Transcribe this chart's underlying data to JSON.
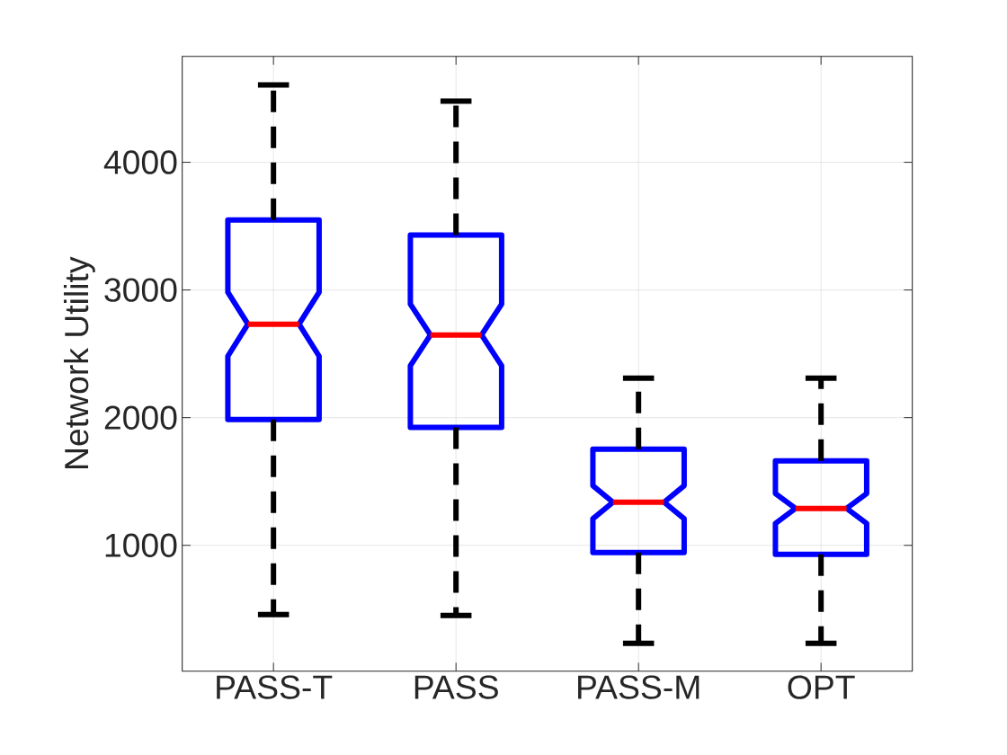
{
  "chart_data": {
    "type": "box",
    "ylabel": "Network Utility",
    "categories": [
      "PASS-T",
      "PASS",
      "PASS-M",
      "OPT"
    ],
    "boxes": [
      {
        "low": 458,
        "q1": 1986,
        "median": 2732,
        "q3": 3549,
        "high": 4606
      },
      {
        "low": 451,
        "q1": 1923,
        "median": 2648,
        "q3": 3430,
        "high": 4479
      },
      {
        "low": 232,
        "q1": 944,
        "median": 1338,
        "q3": 1754,
        "high": 2310
      },
      {
        "low": 232,
        "q1": 930,
        "median": 1289,
        "q3": 1662,
        "high": 2310
      }
    ],
    "color": "#0000ff",
    "ylim": [
      15,
      4830
    ],
    "yticks": [
      1000,
      2000,
      3000,
      4000
    ],
    "grid": true
  }
}
